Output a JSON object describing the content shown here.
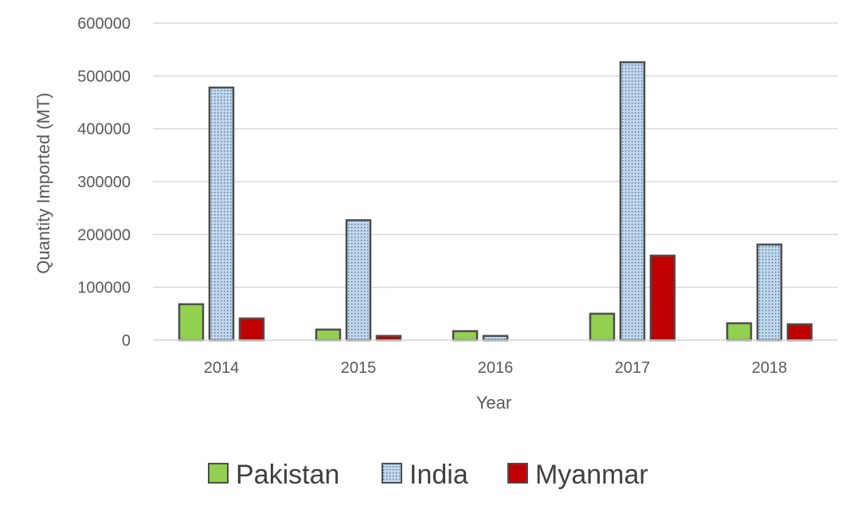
{
  "chart_data": {
    "type": "bar",
    "title": "",
    "xlabel": "Year",
    "ylabel": "Quantity Imported (MT)",
    "categories": [
      "2014",
      "2015",
      "2016",
      "2017",
      "2018"
    ],
    "ylim": [
      0,
      600000
    ],
    "yticks": [
      "0",
      "100000",
      "200000",
      "300000",
      "400000",
      "500000",
      "600000"
    ],
    "grid": true,
    "legend_position": "bottom",
    "series": [
      {
        "name": "Pakistan",
        "color": "#92d050",
        "pattern": "solid",
        "values": [
          68000,
          20000,
          17000,
          50000,
          32000
        ]
      },
      {
        "name": "India",
        "color": "#bdd7ee",
        "pattern": "dotted",
        "values": [
          478000,
          227000,
          8000,
          526000,
          181000
        ]
      },
      {
        "name": "Myanmar",
        "color": "#c00000",
        "pattern": "solid",
        "values": [
          41000,
          8000,
          0,
          160000,
          30000
        ]
      }
    ]
  }
}
